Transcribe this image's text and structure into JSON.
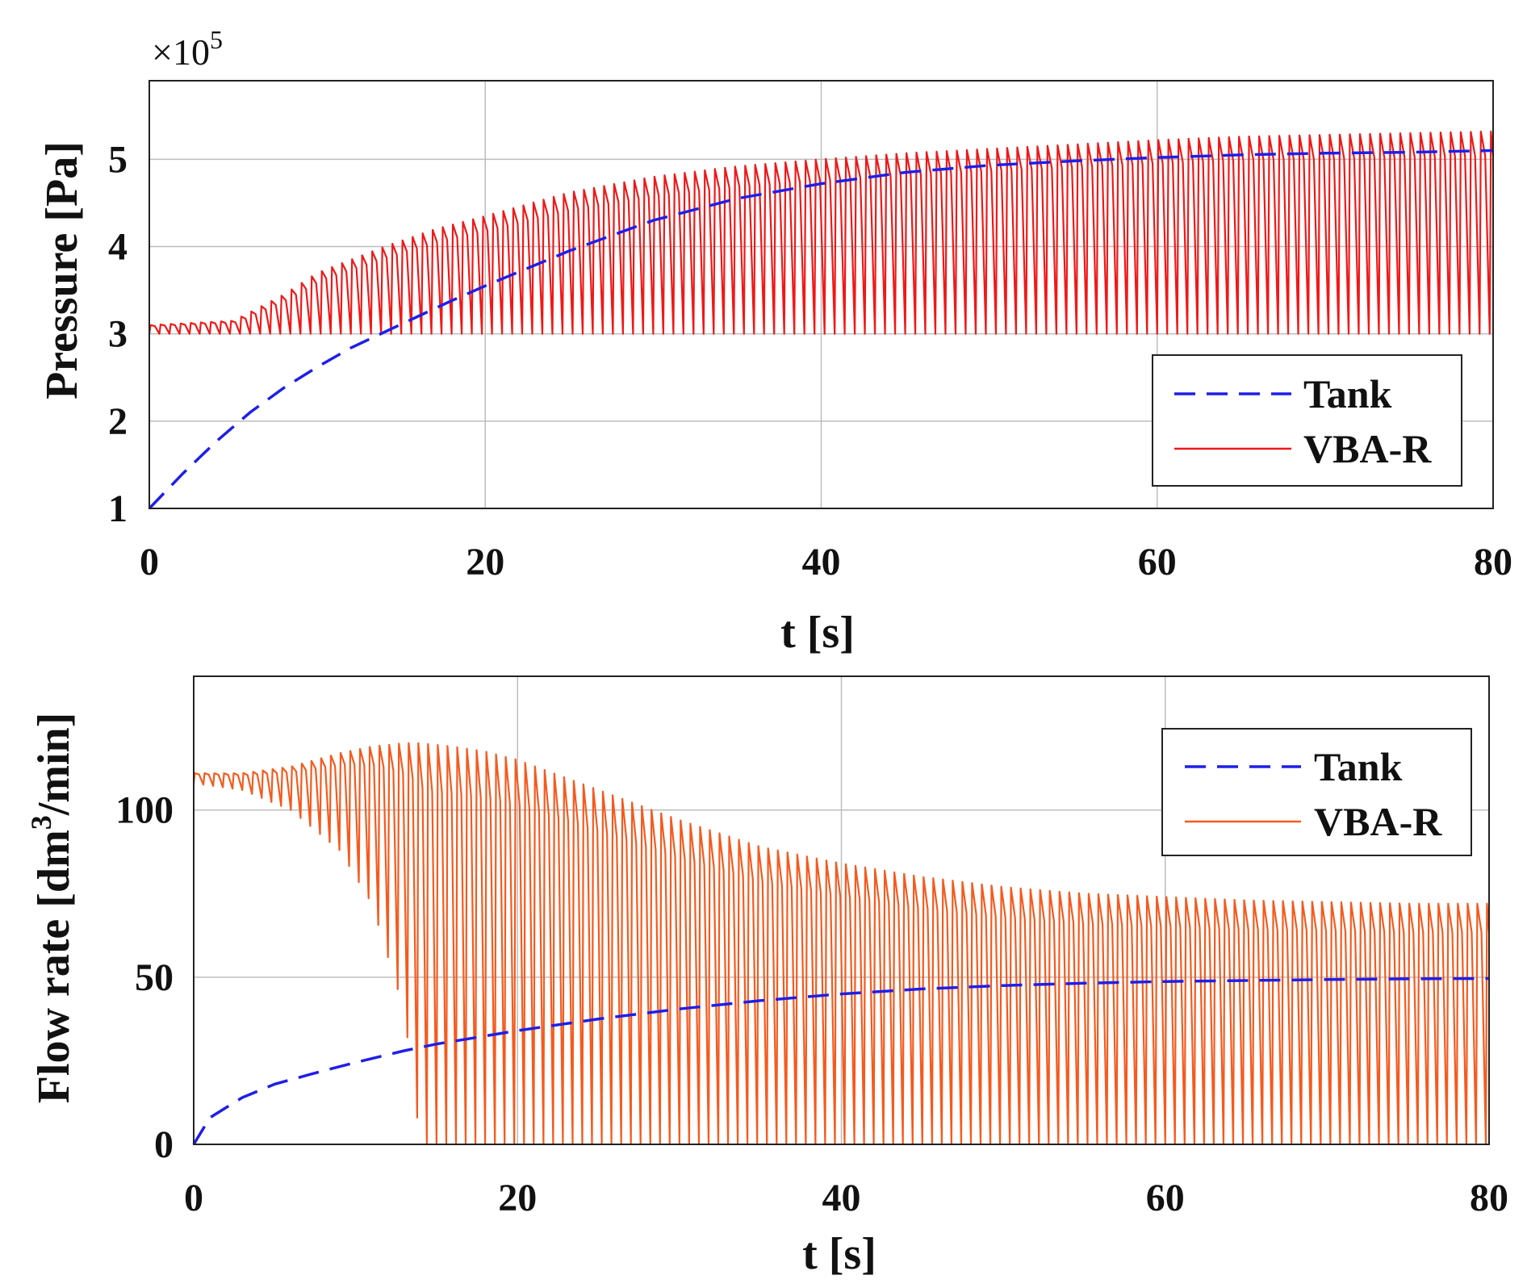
{
  "chart_data": [
    {
      "type": "line",
      "id": "pressure",
      "title": "",
      "xlabel": "t [s]",
      "ylabel": "Pressure [Pa]",
      "y_exponent_label": {
        "base": "×10",
        "exponent": "5"
      },
      "xlim": [
        0,
        80
      ],
      "ylim": [
        1,
        5.9
      ],
      "xticks": [
        0,
        20,
        40,
        60,
        80
      ],
      "yticks": [
        1,
        2,
        3,
        4,
        5
      ],
      "grid": true,
      "legend_position": "lower-right",
      "series": [
        {
          "name": "Tank",
          "color": "#1f1fe8",
          "style": "dashed",
          "x": [
            0,
            2,
            4,
            6,
            8,
            10,
            12,
            14,
            16,
            18,
            20,
            25,
            30,
            35,
            40,
            45,
            50,
            55,
            60,
            65,
            70,
            75,
            80
          ],
          "values": [
            1.0,
            1.4,
            1.77,
            2.1,
            2.38,
            2.62,
            2.84,
            3.02,
            3.2,
            3.38,
            3.55,
            3.95,
            4.3,
            4.55,
            4.72,
            4.85,
            4.93,
            4.98,
            5.02,
            5.05,
            5.07,
            5.08,
            5.1
          ]
        },
        {
          "name": "VBA-R",
          "color": "#f01818",
          "style": "solid",
          "oscillation": {
            "period_s": 0.6,
            "start_s": 0
          },
          "x": [
            0,
            5,
            8,
            10,
            14,
            17,
            20,
            25,
            30,
            35,
            40,
            45,
            50,
            55,
            60,
            65,
            70,
            75,
            80
          ],
          "upper": [
            3.1,
            3.15,
            3.45,
            3.7,
            4.0,
            4.2,
            4.35,
            4.62,
            4.8,
            4.92,
            5.0,
            5.07,
            5.12,
            5.17,
            5.22,
            5.26,
            5.28,
            5.3,
            5.32
          ],
          "lower": [
            3.0,
            3.0,
            3.0,
            3.0,
            3.0,
            3.0,
            3.0,
            3.0,
            3.0,
            3.0,
            3.0,
            3.0,
            3.0,
            3.0,
            3.0,
            3.0,
            3.0,
            3.0,
            3.0
          ]
        }
      ]
    },
    {
      "type": "line",
      "id": "flow",
      "title": "",
      "xlabel": "t [s]",
      "ylabel_parts": [
        "Flow rate [dm",
        "3",
        "/min]"
      ],
      "xlim": [
        0,
        80
      ],
      "ylim": [
        0,
        140
      ],
      "xticks": [
        0,
        20,
        40,
        60,
        80
      ],
      "yticks": [
        0,
        50,
        100
      ],
      "grid": true,
      "legend_position": "upper-right",
      "series": [
        {
          "name": "Tank",
          "color": "#1f1fe8",
          "style": "dashed",
          "x": [
            0,
            1,
            3,
            5,
            8,
            10,
            13,
            15,
            20,
            25,
            30,
            35,
            40,
            45,
            50,
            55,
            60,
            65,
            70,
            75,
            80
          ],
          "values": [
            0,
            8,
            14,
            18,
            22,
            24.5,
            28,
            30,
            34,
            37.5,
            40.5,
            43,
            45,
            46.5,
            47.5,
            48.2,
            48.7,
            49,
            49.3,
            49.5,
            49.6
          ]
        },
        {
          "name": "VBA-R",
          "color": "#f55a1e",
          "style": "solid",
          "oscillation": {
            "period_s": 0.6,
            "start_s": 0
          },
          "x": [
            0,
            3,
            6,
            9,
            11,
            13,
            14,
            16,
            18,
            20,
            25,
            30,
            35,
            40,
            45,
            50,
            55,
            60,
            65,
            70,
            75,
            80
          ],
          "upper": [
            111,
            111,
            113,
            117,
            119,
            120,
            120,
            119,
            117.5,
            115,
            106,
            97,
            89,
            84,
            80,
            77,
            75,
            74,
            73,
            72.5,
            72,
            72
          ],
          "lower": [
            108,
            106,
            100,
            88,
            72,
            40,
            0,
            0,
            0,
            0,
            0,
            0,
            0,
            0,
            0,
            0,
            0,
            0,
            0,
            0,
            0,
            0
          ]
        }
      ]
    }
  ]
}
